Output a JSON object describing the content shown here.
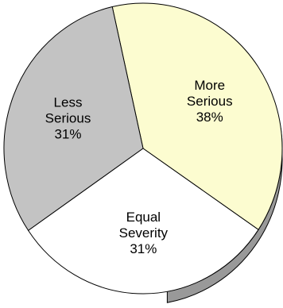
{
  "chart_data": {
    "type": "pie",
    "title": "",
    "slices": [
      {
        "label_lines": [
          "More",
          "Serious"
        ],
        "value": 38,
        "value_label": "38%",
        "color": "#fcfcd0"
      },
      {
        "label_lines": [
          "Less",
          "Serious"
        ],
        "value": 31,
        "value_label": "31%",
        "color": "#c3c3c3"
      },
      {
        "label_lines": [
          "Equal",
          "Severity"
        ],
        "value": 31,
        "value_label": "31%",
        "color": "#ffffff"
      }
    ],
    "style": "3d-tilted",
    "edge_color": "#000000",
    "depth_color": "#999999"
  }
}
